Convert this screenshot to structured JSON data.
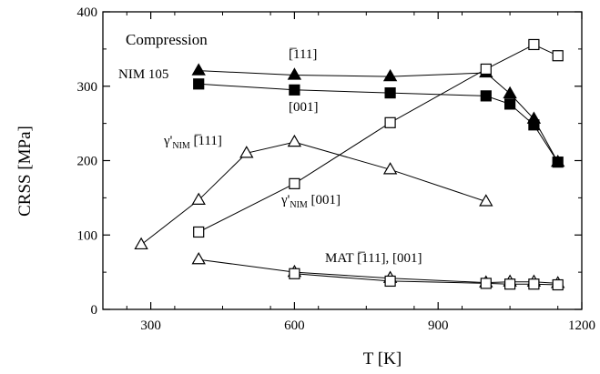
{
  "chart_data": {
    "type": "line",
    "xlabel": "T [K]",
    "ylabel": "CRSS [MPa]",
    "xlim": [
      200,
      1200
    ],
    "ylim": [
      0,
      400
    ],
    "xticks": [
      300,
      600,
      900,
      1200
    ],
    "yticks": [
      0,
      100,
      200,
      300,
      400
    ],
    "grid": false,
    "annotations": {
      "compression": "Compression",
      "nim105": "NIM 105",
      "dir111_top": "[̅111]",
      "dir001_top": "[001]",
      "gamma111_prefix": "γ'",
      "gamma111_sub": "NIM",
      "gamma111_suffix": " [̅111]",
      "gamma001_prefix": "γ'",
      "gamma001_sub": "NIM",
      "gamma001_suffix": " [001]",
      "mat": "MAT [̅111], [001]"
    },
    "series": [
      {
        "marker": "filled-triangle",
        "x": [
          400,
          600,
          800,
          1000,
          1050,
          1100,
          1150
        ],
        "y": [
          321,
          315,
          313,
          318,
          290,
          256,
          198
        ]
      },
      {
        "marker": "filled-square",
        "x": [
          400,
          600,
          800,
          1000,
          1050,
          1100,
          1150
        ],
        "y": [
          303,
          295,
          291,
          287,
          276,
          248,
          198
        ]
      },
      {
        "marker": "open-triangle",
        "x": [
          280,
          400,
          500,
          600,
          800,
          1000
        ],
        "y": [
          87,
          147,
          210,
          225,
          188,
          145
        ]
      },
      {
        "marker": "open-square",
        "x": [
          400,
          600,
          800,
          1000,
          1100,
          1150
        ],
        "y": [
          104,
          169,
          251,
          323,
          356,
          341
        ]
      },
      {
        "marker": "open-triangle",
        "x": [
          400,
          600,
          800,
          1000,
          1050,
          1100,
          1150
        ],
        "y": [
          67,
          50,
          42,
          36,
          37,
          37,
          35
        ]
      },
      {
        "marker": "open-square",
        "x": [
          600,
          800,
          1000,
          1050,
          1100,
          1150
        ],
        "y": [
          48,
          38,
          35,
          34,
          34,
          33
        ]
      }
    ]
  }
}
